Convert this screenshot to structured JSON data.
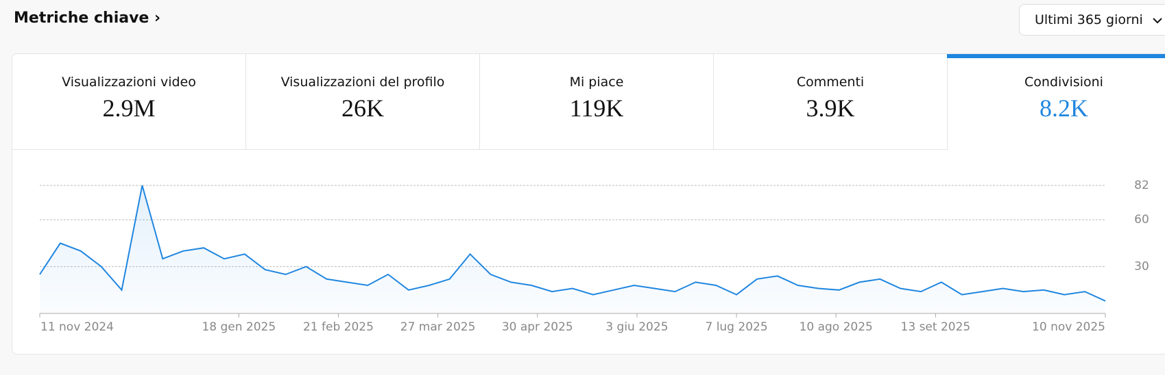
{
  "header": {
    "title": "Metriche chiave ›",
    "range": "Ultimi 365 giorni"
  },
  "metrics": [
    {
      "label": "Visualizzazioni video",
      "value": "2.9M"
    },
    {
      "label": "Visualizzazioni del profilo",
      "value": "26K"
    },
    {
      "label": "Mi piace",
      "value": "119K"
    },
    {
      "label": "Commenti",
      "value": "3.9K"
    },
    {
      "label": "Condivisioni",
      "value": "8.2K"
    }
  ],
  "chart_data": {
    "type": "line",
    "color": "#1f86e0",
    "grid": true,
    "x": [
      "2024-11-11",
      "2024-11-18",
      "2024-11-25",
      "2024-12-02",
      "2024-12-09",
      "2024-12-16",
      "2024-12-23",
      "2024-12-30",
      "2025-01-06",
      "2025-01-13",
      "2025-01-20",
      "2025-01-27",
      "2025-02-03",
      "2025-02-10",
      "2025-02-17",
      "2025-02-24",
      "2025-03-03",
      "2025-03-10",
      "2025-03-17",
      "2025-03-24",
      "2025-03-31",
      "2025-04-07",
      "2025-04-14",
      "2025-04-21",
      "2025-04-28",
      "2025-05-05",
      "2025-05-12",
      "2025-05-19",
      "2025-05-26",
      "2025-06-02",
      "2025-06-09",
      "2025-06-16",
      "2025-06-23",
      "2025-06-30",
      "2025-07-07",
      "2025-07-14",
      "2025-07-21",
      "2025-07-28",
      "2025-08-04",
      "2025-08-11",
      "2025-08-18",
      "2025-08-25",
      "2025-09-01",
      "2025-09-08",
      "2025-09-15",
      "2025-09-22",
      "2025-09-29",
      "2025-10-06",
      "2025-10-13",
      "2025-10-20",
      "2025-10-27",
      "2025-11-03",
      "2025-11-10"
    ],
    "values": [
      25,
      45,
      40,
      30,
      15,
      82,
      35,
      40,
      42,
      35,
      38,
      28,
      25,
      30,
      22,
      20,
      18,
      25,
      15,
      18,
      22,
      38,
      25,
      20,
      18,
      14,
      16,
      12,
      15,
      18,
      16,
      14,
      20,
      18,
      12,
      22,
      24,
      18,
      16,
      15,
      20,
      22,
      16,
      14,
      20,
      12,
      14,
      16,
      14,
      15,
      12,
      14,
      8
    ],
    "xlim": [
      "2024-11-11",
      "2025-11-10"
    ],
    "xticks": [
      {
        "value": "2024-11-11",
        "label": "11 nov 2024"
      },
      {
        "value": "2025-01-18",
        "label": "18 gen 2025"
      },
      {
        "value": "2025-02-21",
        "label": "21 feb 2025"
      },
      {
        "value": "2025-03-27",
        "label": "27 mar 2025"
      },
      {
        "value": "2025-04-30",
        "label": "30 apr 2025"
      },
      {
        "value": "2025-06-03",
        "label": "3 giu 2025"
      },
      {
        "value": "2025-07-07",
        "label": "7 lug 2025"
      },
      {
        "value": "2025-08-10",
        "label": "10 ago 2025"
      },
      {
        "value": "2025-09-13",
        "label": "13 set 2025"
      },
      {
        "value": "2025-11-10",
        "label": "10 nov 2025"
      }
    ],
    "ylim": [
      0,
      82
    ],
    "yticks": [
      30,
      60,
      82
    ]
  }
}
